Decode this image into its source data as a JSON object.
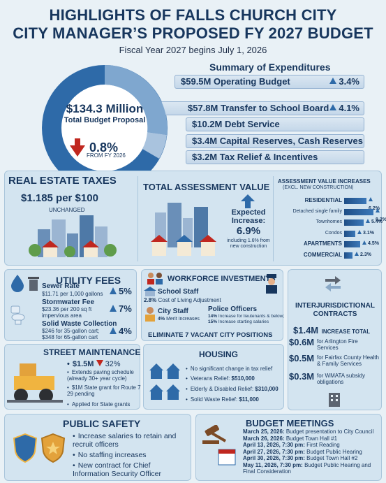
{
  "header": {
    "title_line1": "HIGHLIGHTS OF FALLS CHURCH CITY",
    "title_line2": "CITY MANAGER’S PROPOSED FY 2027 BUDGET",
    "subtitle": "Fiscal Year 2027 begins July 1, 2026"
  },
  "budget": {
    "total": "$134.3 Million",
    "total_label": "Total Budget Proposal",
    "change": "0.8%",
    "change_from": "FROM FY 2026"
  },
  "expenditures": {
    "title": "Summary of Expenditures",
    "items": [
      {
        "label": "$59.5M Operating Budget",
        "change": "3.4%"
      },
      {
        "label": "$57.8M Transfer to School Board",
        "change": "4.1%"
      },
      {
        "label": "$10.2M Debt Service",
        "change": ""
      },
      {
        "label": "$3.4M Capital Reserves, Cash Reserves",
        "change": ""
      },
      {
        "label": "$3.2M Tax Relief & Incentives",
        "change": ""
      }
    ]
  },
  "real_estate": {
    "title": "REAL ESTATE TAXES",
    "rate": "$1.185 per $100",
    "status": "UNCHANGED"
  },
  "assessment": {
    "title": "TOTAL ASSESSMENT VALUE",
    "expected_label": "Expected Increase:",
    "expected_value": "6.9%",
    "note": "including 1.6% from new construction"
  },
  "assessment_increases": {
    "title": "ASSESSMENT VALUE INCREASES",
    "subtitle": "(EXCL. NEW CONSTRUCTION)",
    "rows": [
      {
        "label": "RESIDENTIAL",
        "value": "6.2%",
        "pct": 6.2,
        "bold": true
      },
      {
        "label": "Detached single family",
        "value": "8.2%",
        "pct": 8.2,
        "bold": false
      },
      {
        "label": "Townhomes",
        "value": "5.4%",
        "pct": 5.4,
        "bold": false
      },
      {
        "label": "Condos",
        "value": "3.1%",
        "pct": 3.1,
        "bold": false
      },
      {
        "label": "APARTMENTS",
        "value": "4.5%",
        "pct": 4.5,
        "bold": true
      },
      {
        "label": "COMMERCIAL",
        "value": "2.3%",
        "pct": 2.3,
        "bold": true
      }
    ]
  },
  "utility": {
    "title": "UTILITY FEES",
    "sewer_title": "Sewer Rate",
    "sewer_detail": "$11.71 per 1,000 gallons",
    "sewer_change": "5%",
    "storm_title": "Stormwater Fee",
    "storm_detail": "$23.36 per 200 sq ft impervious area",
    "storm_change": "7%",
    "waste_title": "Solid Waste Collection",
    "waste_detail": "$246 for 35-gallon cart; $348 for 65-gallon cart",
    "waste_change": "4%"
  },
  "workforce": {
    "title": "WORKFORCE INVESTMENTS",
    "school_title": "School Staff",
    "school_detail_bold": "2.8%",
    "school_detail": "Cost of Living Adjustment",
    "city_title": "City Staff",
    "city_detail_bold": "4%",
    "city_detail": "Merit Increases",
    "police_title": "Police Officers",
    "police_detail1_bold": "14%",
    "police_detail1": "Increase for lieutenants & below;",
    "police_detail2_bold": "15%",
    "police_detail2": "Increase starting salaries",
    "footer": "ELIMINATE 7 VACANT CITY POSITIONS"
  },
  "interjurisdictional": {
    "title_line1": "INTERJURISDICTIONAL",
    "title_line2": "CONTRACTS",
    "total_amount": "$1.4M",
    "total_label": "INCREASE TOTAL",
    "items": [
      {
        "amount": "$0.6M",
        "desc": "for Arlington Fire Services"
      },
      {
        "amount": "$0.5M",
        "desc": "for Fairfax County Health & Family Services"
      },
      {
        "amount": "$0.3M",
        "desc": "for WMATA subsidy obligations"
      }
    ]
  },
  "street": {
    "title": "STREET MAINTENANCE",
    "amount": "$1.5M",
    "change": "32%",
    "items": [
      "Extends paving schedule (already 30+ year cycle)",
      "$1M State grant for Route 7 29 pending",
      "Applied for State grants"
    ]
  },
  "housing": {
    "title": "HOUSING",
    "items": [
      {
        "text": "No significant change in tax relief",
        "bold": ""
      },
      {
        "text": "Veterans Relief: ",
        "bold": "$510,000"
      },
      {
        "text": "Elderly & Disabled Relief: ",
        "bold": "$310,000"
      },
      {
        "text": "Solid Waste Relief: ",
        "bold": "$11,000"
      }
    ]
  },
  "safety": {
    "title": "PUBLIC SAFETY",
    "items": [
      "Increase salaries to retain and recruit officers",
      "No staffing increases",
      "New contract for Chief Information Security Officer"
    ]
  },
  "meetings": {
    "title": "BUDGET MEETINGS",
    "items": [
      {
        "date": "March 25, 2026:",
        "desc": "Budget presentation to City Council"
      },
      {
        "date": "March 26, 2026:",
        "desc": "Budget Town Hall #1"
      },
      {
        "date": "April 13, 2026, 7:30 pm:",
        "desc": "First Reading"
      },
      {
        "date": "April 27, 2026, 7:30 pm:",
        "desc": "Budget Public Hearing"
      },
      {
        "date": "April 30, 2026, 7:30 pm:",
        "desc": "Budget Town Hall #2"
      },
      {
        "date": "May 11, 2026, 7:30 pm:",
        "desc": "Budget Public Hearing and Final Consideration"
      }
    ]
  },
  "colors": {
    "navy": "#17365d",
    "blue": "#2e6aa8",
    "red": "#c0271f",
    "panel": "#d3e4f0"
  }
}
